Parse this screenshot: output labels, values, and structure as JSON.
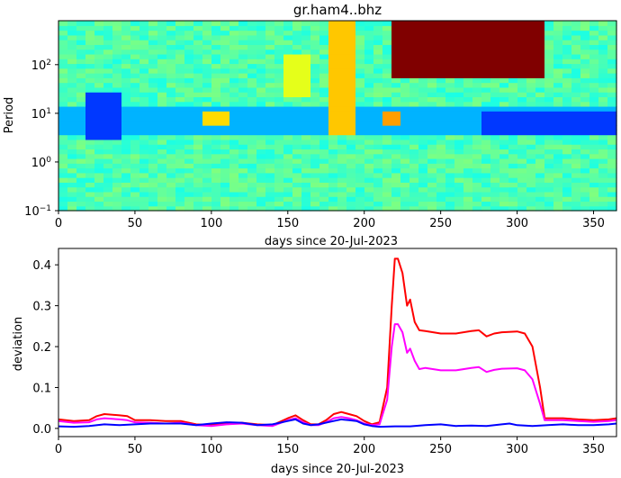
{
  "chart_data": [
    {
      "type": "heatmap",
      "title": "gr.ham4..bhz",
      "xlabel": "days since 20-Jul-2023",
      "ylabel": "Period",
      "xlim": [
        0,
        365
      ],
      "ylim": [
        0.1,
        800
      ],
      "yscale": "log",
      "xticks": [
        0,
        50,
        100,
        150,
        200,
        250,
        300,
        350
      ],
      "yticks": [
        {
          "value": 0.1,
          "base": "10",
          "exp": "−1"
        },
        {
          "value": 1,
          "base": "10",
          "exp": "0"
        },
        {
          "value": 10,
          "base": "10",
          "exp": "1"
        },
        {
          "value": 100,
          "base": "10",
          "exp": "2"
        }
      ],
      "colormap": "jet",
      "features": [
        {
          "x": [
            215,
            315
          ],
          "y": [
            60,
            800
          ],
          "level": 1.0
        },
        {
          "x": [
            0,
            365
          ],
          "y": [
            4,
            15
          ],
          "level": 0.3
        },
        {
          "x": [
            275,
            365
          ],
          "y": [
            4,
            12
          ],
          "level": 0.18
        },
        {
          "x": [
            15,
            40
          ],
          "y": [
            3,
            25
          ],
          "level": 0.18
        },
        {
          "x": [
            175,
            195
          ],
          "y": [
            4,
            1000
          ],
          "level": 0.68
        },
        {
          "x": [
            210,
            225
          ],
          "y": [
            6,
            12
          ],
          "level": 0.72
        },
        {
          "x": [
            95,
            110
          ],
          "y": [
            6,
            12
          ],
          "level": 0.66
        },
        {
          "x": [
            145,
            165
          ],
          "y": [
            20,
            150
          ],
          "level": 0.6
        }
      ]
    },
    {
      "type": "line",
      "title": "",
      "xlabel": "days since 20-Jul-2023",
      "ylabel": "deviation",
      "xlim": [
        0,
        365
      ],
      "ylim": [
        -0.02,
        0.44
      ],
      "xticks": [
        0,
        50,
        100,
        150,
        200,
        250,
        300,
        350
      ],
      "yticks": [
        0.0,
        0.1,
        0.2,
        0.3,
        0.4
      ],
      "series": [
        {
          "color": "#ff0000",
          "points": [
            [
              0,
              0.022
            ],
            [
              10,
              0.018
            ],
            [
              20,
              0.02
            ],
            [
              25,
              0.03
            ],
            [
              30,
              0.035
            ],
            [
              40,
              0.032
            ],
            [
              45,
              0.03
            ],
            [
              50,
              0.02
            ],
            [
              60,
              0.02
            ],
            [
              70,
              0.018
            ],
            [
              80,
              0.018
            ],
            [
              90,
              0.01
            ],
            [
              100,
              0.008
            ],
            [
              110,
              0.012
            ],
            [
              120,
              0.014
            ],
            [
              130,
              0.01
            ],
            [
              140,
              0.008
            ],
            [
              150,
              0.025
            ],
            [
              155,
              0.032
            ],
            [
              160,
              0.02
            ],
            [
              165,
              0.01
            ],
            [
              170,
              0.01
            ],
            [
              175,
              0.02
            ],
            [
              180,
              0.035
            ],
            [
              185,
              0.04
            ],
            [
              190,
              0.035
            ],
            [
              195,
              0.03
            ],
            [
              200,
              0.018
            ],
            [
              205,
              0.01
            ],
            [
              210,
              0.015
            ],
            [
              215,
              0.1
            ],
            [
              218,
              0.3
            ],
            [
              220,
              0.415
            ],
            [
              222,
              0.415
            ],
            [
              225,
              0.38
            ],
            [
              228,
              0.3
            ],
            [
              230,
              0.315
            ],
            [
              233,
              0.26
            ],
            [
              236,
              0.24
            ],
            [
              240,
              0.238
            ],
            [
              250,
              0.232
            ],
            [
              260,
              0.232
            ],
            [
              270,
              0.238
            ],
            [
              275,
              0.24
            ],
            [
              280,
              0.225
            ],
            [
              285,
              0.232
            ],
            [
              290,
              0.235
            ],
            [
              300,
              0.237
            ],
            [
              305,
              0.232
            ],
            [
              310,
              0.2
            ],
            [
              315,
              0.1
            ],
            [
              318,
              0.025
            ],
            [
              330,
              0.025
            ],
            [
              340,
              0.022
            ],
            [
              350,
              0.02
            ],
            [
              360,
              0.022
            ],
            [
              365,
              0.025
            ]
          ]
        },
        {
          "color": "#ff00ff",
          "points": [
            [
              0,
              0.018
            ],
            [
              10,
              0.014
            ],
            [
              20,
              0.015
            ],
            [
              25,
              0.022
            ],
            [
              30,
              0.025
            ],
            [
              40,
              0.022
            ],
            [
              45,
              0.02
            ],
            [
              50,
              0.015
            ],
            [
              60,
              0.014
            ],
            [
              70,
              0.012
            ],
            [
              80,
              0.014
            ],
            [
              90,
              0.008
            ],
            [
              100,
              0.006
            ],
            [
              110,
              0.01
            ],
            [
              120,
              0.012
            ],
            [
              130,
              0.008
            ],
            [
              140,
              0.006
            ],
            [
              150,
              0.02
            ],
            [
              155,
              0.025
            ],
            [
              160,
              0.015
            ],
            [
              165,
              0.008
            ],
            [
              170,
              0.008
            ],
            [
              175,
              0.015
            ],
            [
              180,
              0.025
            ],
            [
              185,
              0.028
            ],
            [
              190,
              0.025
            ],
            [
              195,
              0.02
            ],
            [
              200,
              0.012
            ],
            [
              205,
              0.008
            ],
            [
              210,
              0.01
            ],
            [
              215,
              0.07
            ],
            [
              218,
              0.2
            ],
            [
              220,
              0.255
            ],
            [
              222,
              0.255
            ],
            [
              225,
              0.235
            ],
            [
              228,
              0.185
            ],
            [
              230,
              0.195
            ],
            [
              233,
              0.165
            ],
            [
              236,
              0.145
            ],
            [
              240,
              0.148
            ],
            [
              250,
              0.142
            ],
            [
              260,
              0.142
            ],
            [
              270,
              0.148
            ],
            [
              275,
              0.15
            ],
            [
              280,
              0.138
            ],
            [
              285,
              0.143
            ],
            [
              290,
              0.146
            ],
            [
              300,
              0.147
            ],
            [
              305,
              0.142
            ],
            [
              310,
              0.12
            ],
            [
              315,
              0.06
            ],
            [
              318,
              0.02
            ],
            [
              330,
              0.02
            ],
            [
              340,
              0.018
            ],
            [
              350,
              0.016
            ],
            [
              360,
              0.018
            ],
            [
              365,
              0.02
            ]
          ]
        },
        {
          "color": "#0000ff",
          "points": [
            [
              0,
              0.005
            ],
            [
              10,
              0.004
            ],
            [
              20,
              0.006
            ],
            [
              30,
              0.01
            ],
            [
              40,
              0.008
            ],
            [
              50,
              0.01
            ],
            [
              60,
              0.012
            ],
            [
              70,
              0.012
            ],
            [
              80,
              0.012
            ],
            [
              90,
              0.008
            ],
            [
              100,
              0.012
            ],
            [
              110,
              0.015
            ],
            [
              120,
              0.014
            ],
            [
              130,
              0.008
            ],
            [
              140,
              0.01
            ],
            [
              150,
              0.018
            ],
            [
              155,
              0.022
            ],
            [
              160,
              0.012
            ],
            [
              165,
              0.008
            ],
            [
              170,
              0.01
            ],
            [
              180,
              0.018
            ],
            [
              185,
              0.022
            ],
            [
              190,
              0.02
            ],
            [
              195,
              0.018
            ],
            [
              200,
              0.01
            ],
            [
              205,
              0.006
            ],
            [
              210,
              0.004
            ],
            [
              220,
              0.005
            ],
            [
              230,
              0.005
            ],
            [
              240,
              0.008
            ],
            [
              250,
              0.01
            ],
            [
              260,
              0.006
            ],
            [
              270,
              0.007
            ],
            [
              280,
              0.006
            ],
            [
              290,
              0.01
            ],
            [
              295,
              0.012
            ],
            [
              300,
              0.008
            ],
            [
              310,
              0.006
            ],
            [
              320,
              0.008
            ],
            [
              330,
              0.01
            ],
            [
              340,
              0.008
            ],
            [
              350,
              0.008
            ],
            [
              360,
              0.01
            ],
            [
              365,
              0.012
            ]
          ]
        }
      ]
    }
  ]
}
